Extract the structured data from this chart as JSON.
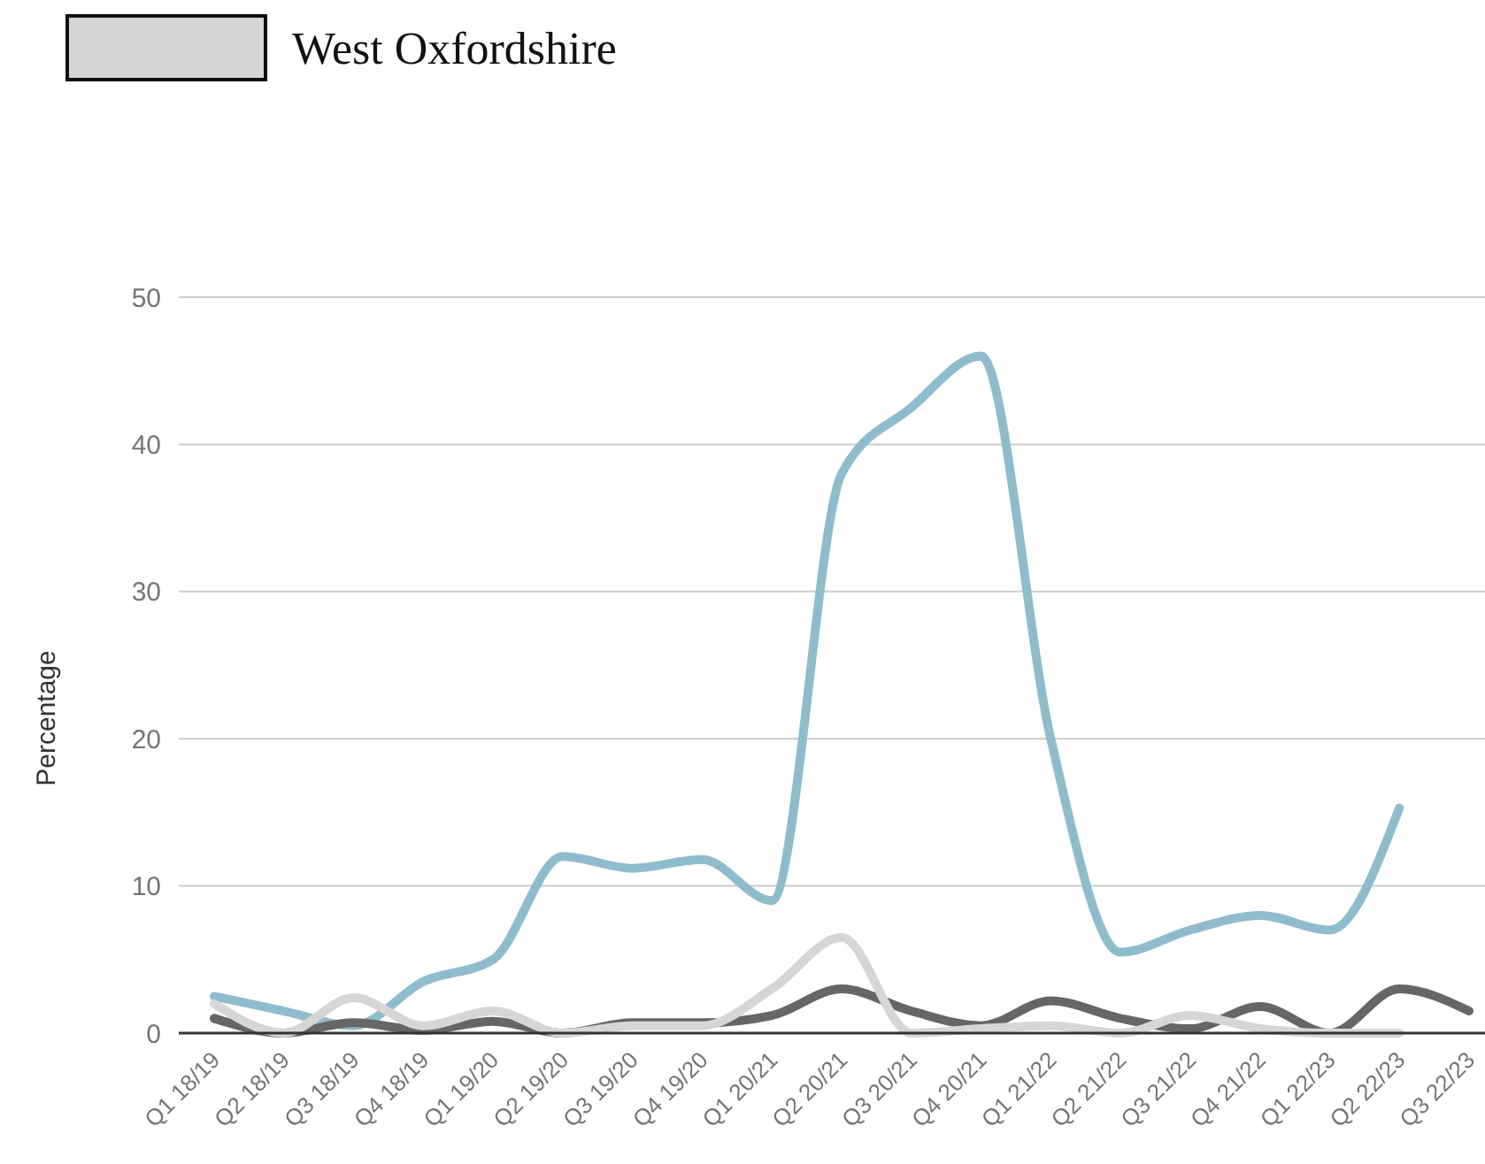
{
  "chart_data": {
    "type": "line",
    "ylabel": "Percentage",
    "categories": [
      "Q1 18/19",
      "Q2 18/19",
      "Q3 18/19",
      "Q4 18/19",
      "Q1 19/20",
      "Q2 19/20",
      "Q3 19/20",
      "Q4 19/20",
      "Q1 20/21",
      "Q2 20/21",
      "Q3 20/21",
      "Q4 20/21",
      "Q1 21/22",
      "Q2 21/22",
      "Q3 21/22",
      "Q4 21/22",
      "Q1 22/23",
      "Q2 22/23",
      "Q3 22/23"
    ],
    "series": [
      {
        "color": "#8fbccc",
        "values": [
          2.5,
          1.5,
          0.5,
          3.5,
          5,
          12,
          11.2,
          11.8,
          9,
          38,
          42.5,
          46,
          20,
          5.5,
          7,
          8,
          7,
          15.3,
          null
        ]
      },
      {
        "color": "#666666",
        "values": [
          1,
          0,
          0.7,
          0.2,
          0.8,
          0,
          0.7,
          0.7,
          1.2,
          3,
          1.5,
          0.5,
          2.2,
          1,
          0.3,
          1.8,
          0,
          3,
          1.5
        ]
      },
      {
        "name": "West Oxfordshire",
        "color": "#d6d6d6",
        "values": [
          2,
          0,
          2.4,
          0.5,
          1.5,
          0,
          0.5,
          0.5,
          3,
          6.5,
          0,
          0.3,
          0.5,
          0,
          1.2,
          0.3,
          0,
          0,
          null
        ]
      }
    ],
    "ylim": [
      0,
      50
    ],
    "yticks": [
      0,
      10,
      20,
      30,
      40,
      50
    ],
    "grid": "y",
    "legend": "top left",
    "line_style": "solid",
    "marker": "none"
  }
}
